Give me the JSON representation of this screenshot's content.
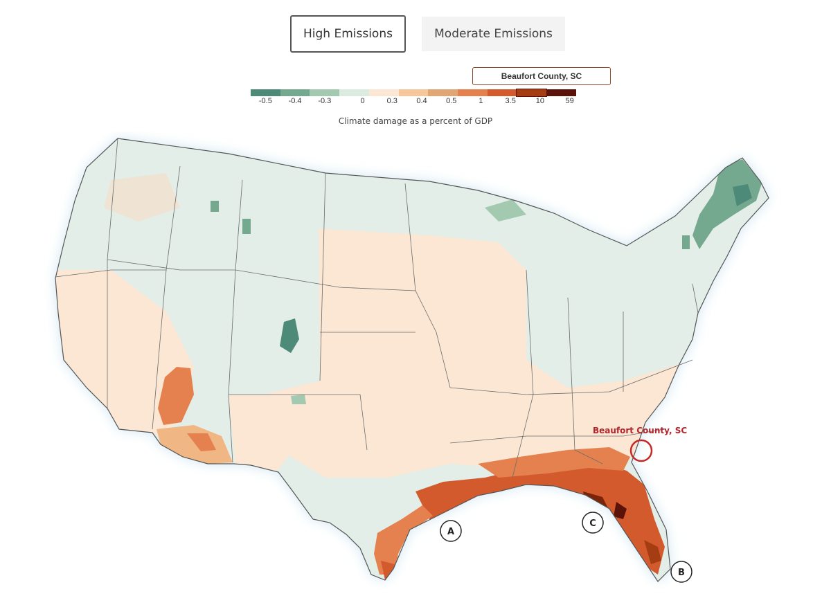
{
  "tabs": [
    {
      "label": "High Emissions",
      "active": true
    },
    {
      "label": "Moderate Emissions",
      "active": false
    }
  ],
  "legend": {
    "highlight_label": "Beaufort County, SC",
    "caption": "Climate damage as a percent of GDP",
    "ticks": [
      "-0.5",
      "-0.4",
      "-0.3",
      "0",
      "0.3",
      "0.4",
      "0.5",
      "1",
      "3.5",
      "10",
      "59"
    ],
    "colors": [
      "#4e8a78",
      "#75a98f",
      "#a4c9b1",
      "#dcebe2",
      "#fbe7d3",
      "#f5c79a",
      "#e0a775",
      "#e5804f",
      "#d35a2d",
      "#a53d12",
      "#5b1208"
    ],
    "highlight_bin_index": 9
  },
  "map": {
    "callout_label": "Beaufort County, SC",
    "markers": [
      "A",
      "B",
      "C"
    ],
    "colors": {
      "water": "#d9ebf4",
      "land_neutral": "#e3eee8",
      "state_border": "#6b6b6b",
      "callout": "#c62828"
    }
  }
}
